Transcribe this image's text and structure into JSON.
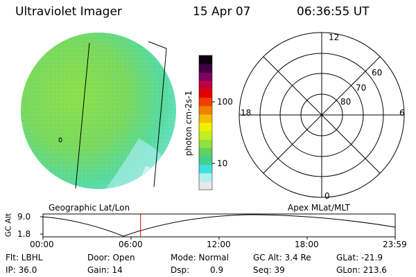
{
  "header": {
    "instrument": "Ultraviolet Imager",
    "date": "15 Apr 07",
    "time": "06:36:55 UT"
  },
  "colorbar": {
    "unit_label": "photon cm-2s-1",
    "ticks": [
      "100",
      "10"
    ],
    "colors": [
      "#e8e8e8",
      "#b0f0f0",
      "#40e0e0",
      "#40d090",
      "#60d060",
      "#90e040",
      "#c0f020",
      "#f0f000",
      "#f0c000",
      "#f08000",
      "#f04000",
      "#e00000",
      "#c00040",
      "#800060",
      "#400040",
      "#100010"
    ]
  },
  "polar_plot": {
    "title": "Apex MLat/MLT",
    "mlt_labels": {
      "top": "12",
      "bottom": "0",
      "left": "18",
      "right": "6"
    },
    "mlat_labels": [
      "60",
      "70",
      "80"
    ]
  },
  "image_panel": {
    "title": "Geographic Lat/Lon"
  },
  "altitude_plot": {
    "ylabel": "GC Alt",
    "y_ticks": [
      "9.0",
      "1.8"
    ],
    "x_ticks": [
      "00:00",
      "06:00",
      "12:00",
      "18:00",
      "23:59"
    ],
    "current_time_fraction": 0.277
  },
  "info": {
    "flt": "Flt: LBHL",
    "ip": "IP: 36.0",
    "door": "Door: Open",
    "gain": "Gain: 14",
    "mode": "Mode: Normal",
    "dsp_label": "Dsp:",
    "dsp_value": "0.9",
    "gc_alt": "GC Alt: 3.4 Re",
    "seq": "Seq: 39",
    "glat": "GLat: -21.9",
    "glon": "GLon: 213.6"
  }
}
